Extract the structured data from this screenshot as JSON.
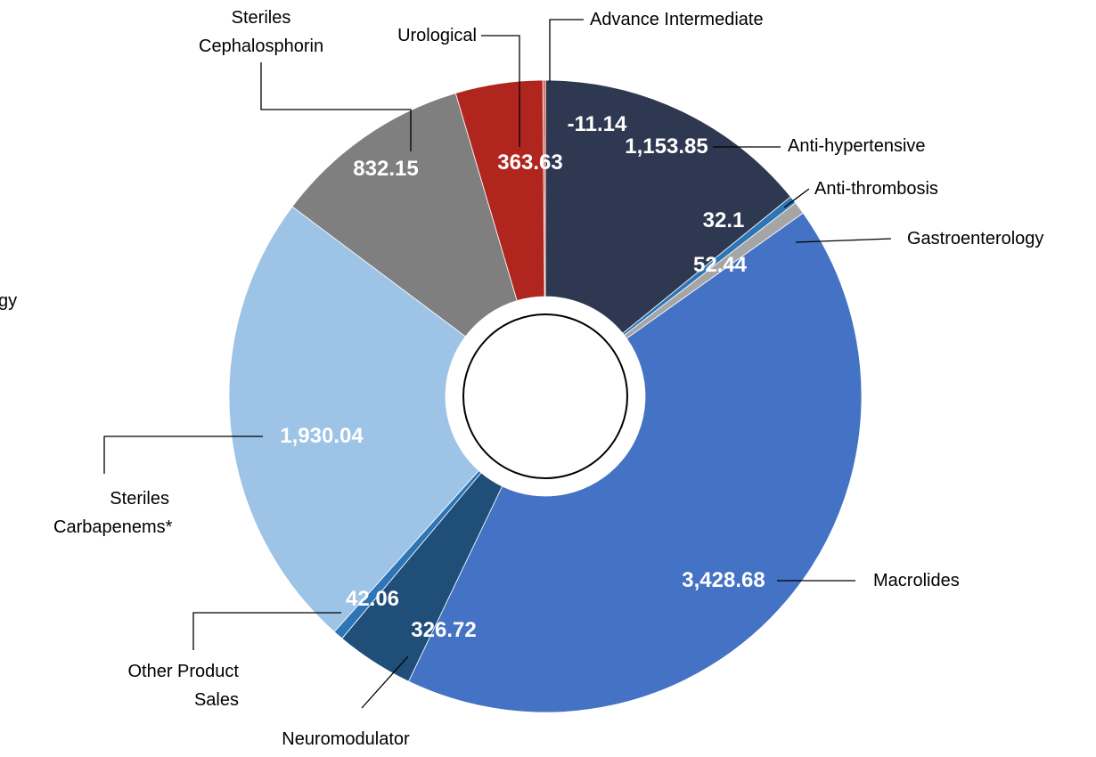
{
  "chart_data": {
    "type": "donut",
    "categories": [
      "Advance Intermediate",
      "Anti-hypertensive",
      "Anti-thrombosis",
      "Gastroenterology",
      "Macrolides",
      "Neuromodulator",
      "Other Product Sales",
      "Steriles Carbapenems*",
      "Steriles Cephalosphorin",
      "Urological"
    ],
    "values": [
      -11.14,
      1153.85,
      32.1,
      52.44,
      3428.68,
      326.72,
      42.06,
      1930.04,
      832.15,
      363.63
    ],
    "value_labels": [
      "-11.14",
      "1,153.85",
      "32.1",
      "52.44",
      "3,428.68",
      "326.72",
      "42.06",
      "1,930.04",
      "832.15",
      "363.63"
    ],
    "colors": [
      "#e0574a",
      "#2e3850",
      "#2e75b6",
      "#a5a5a5",
      "#4472c4",
      "#1f4e79",
      "#2e75b6",
      "#9dc3e6",
      "#7f7f7f",
      "#b0261e"
    ],
    "annotations": [
      "gy"
    ]
  }
}
